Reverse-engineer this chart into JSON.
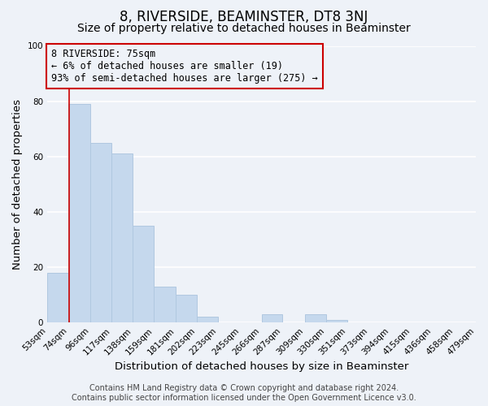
{
  "title": "8, RIVERSIDE, BEAMINSTER, DT8 3NJ",
  "subtitle": "Size of property relative to detached houses in Beaminster",
  "xlabel": "Distribution of detached houses by size in Beaminster",
  "ylabel": "Number of detached properties",
  "bar_edges": [
    53,
    74,
    96,
    117,
    138,
    159,
    181,
    202,
    223,
    245,
    266,
    287,
    309,
    330,
    351,
    373,
    394,
    415,
    436,
    458,
    479
  ],
  "bar_heights": [
    18,
    79,
    65,
    61,
    35,
    13,
    10,
    2,
    0,
    0,
    3,
    0,
    3,
    1,
    0,
    0,
    0,
    0,
    0,
    0
  ],
  "bar_color": "#c5d8ed",
  "bar_edge_color": "#b0c8e0",
  "property_line_x": 75,
  "property_line_color": "#cc0000",
  "annotation_box_edge_color": "#cc0000",
  "annotation_lines": [
    "8 RIVERSIDE: 75sqm",
    "← 6% of detached houses are smaller (19)",
    "93% of semi-detached houses are larger (275) →"
  ],
  "ylim": [
    0,
    100
  ],
  "tick_labels": [
    "53sqm",
    "74sqm",
    "96sqm",
    "117sqm",
    "138sqm",
    "159sqm",
    "181sqm",
    "202sqm",
    "223sqm",
    "245sqm",
    "266sqm",
    "287sqm",
    "309sqm",
    "330sqm",
    "351sqm",
    "373sqm",
    "394sqm",
    "415sqm",
    "436sqm",
    "458sqm",
    "479sqm"
  ],
  "footer_line1": "Contains HM Land Registry data © Crown copyright and database right 2024.",
  "footer_line2": "Contains public sector information licensed under the Open Government Licence v3.0.",
  "background_color": "#eef2f8",
  "grid_color": "#ffffff",
  "title_fontsize": 12,
  "subtitle_fontsize": 10,
  "axis_label_fontsize": 9.5,
  "tick_fontsize": 7.5,
  "annotation_fontsize": 8.5,
  "footer_fontsize": 7
}
